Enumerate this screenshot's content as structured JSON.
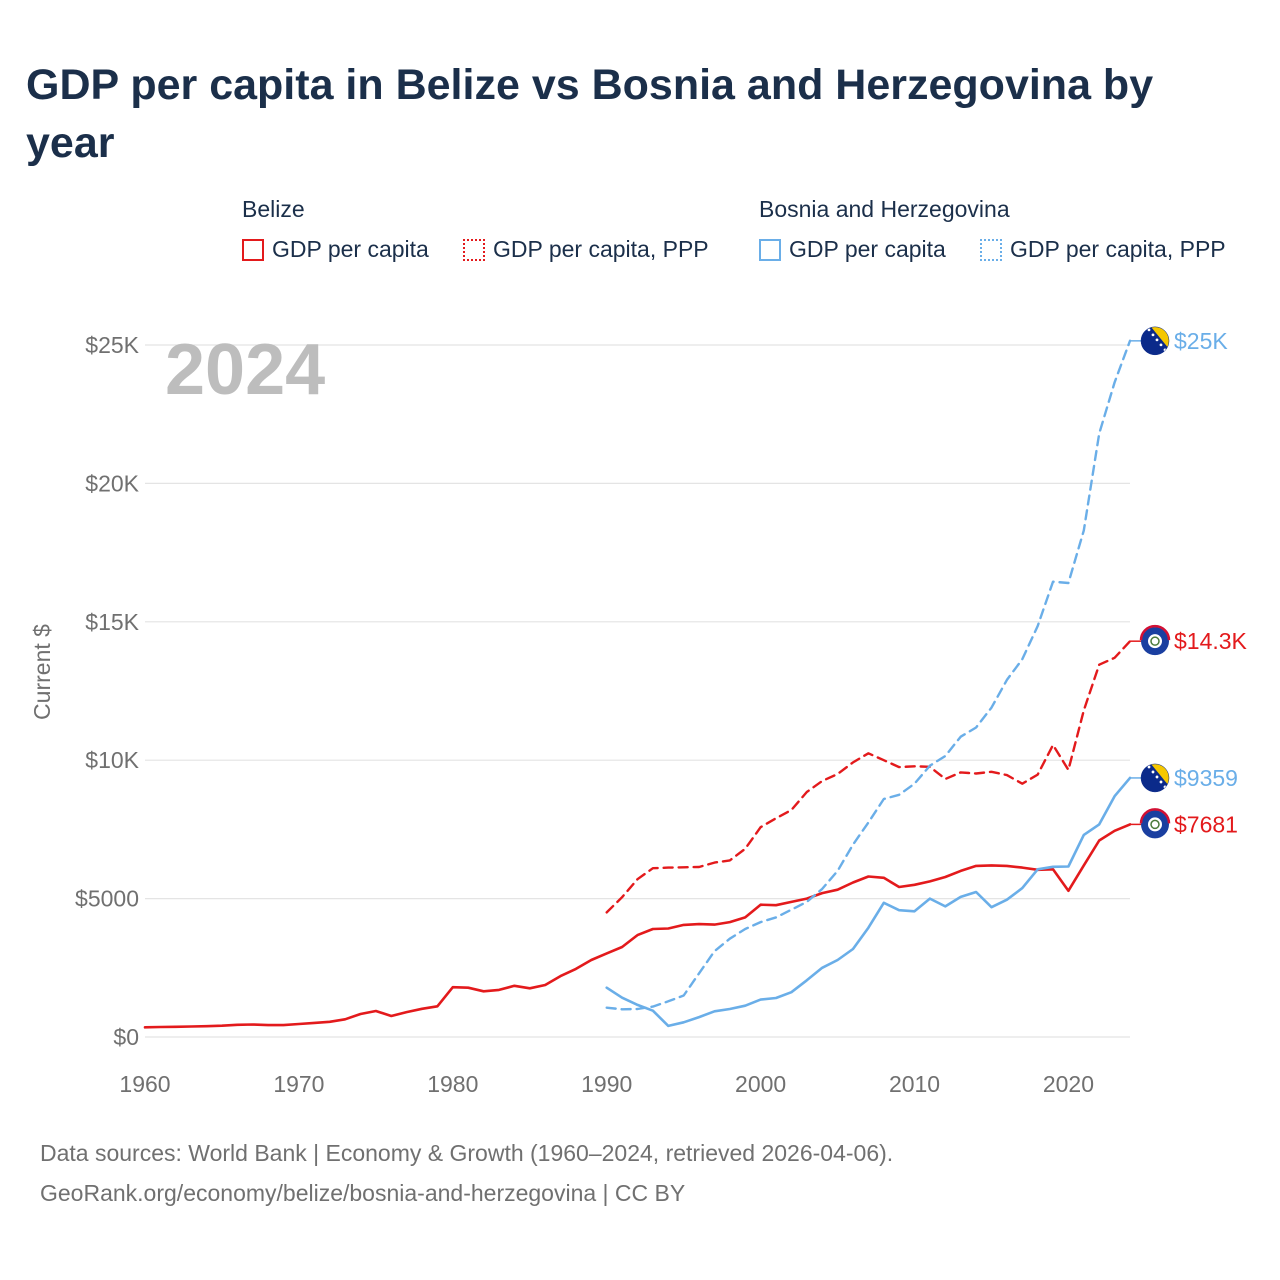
{
  "title": "GDP per capita in Belize vs Bosnia and Herzegovina by year",
  "legend": {
    "groups": [
      {
        "name": "Belize",
        "color": "#e31a1c",
        "items": [
          {
            "label": "GDP per capita",
            "style": "solid"
          },
          {
            "label": "GDP per capita, PPP",
            "style": "dotted"
          }
        ]
      },
      {
        "name": "Bosnia and Herzegovina",
        "color": "#6aaee8",
        "items": [
          {
            "label": "GDP per capita",
            "style": "solid"
          },
          {
            "label": "GDP per capita, PPP",
            "style": "dotted"
          }
        ]
      }
    ]
  },
  "chart_data": {
    "type": "line",
    "ylabel": "Current $",
    "xlim": [
      1960,
      2024
    ],
    "ylim": [
      0,
      25000
    ],
    "x_ticks": [
      1960,
      1970,
      1980,
      1990,
      2000,
      2010,
      2020
    ],
    "y_ticks": [
      {
        "value": 0,
        "label": "$0"
      },
      {
        "value": 5000,
        "label": "$5000"
      },
      {
        "value": 10000,
        "label": "$10K"
      },
      {
        "value": 15000,
        "label": "$15K"
      },
      {
        "value": 20000,
        "label": "$20K"
      },
      {
        "value": 25000,
        "label": "$25K"
      }
    ],
    "year_watermark": "2024",
    "series": [
      {
        "name": "Belize GDP per capita",
        "country": "Belize",
        "color": "#e31a1c",
        "dash": "solid",
        "end_label": "$7681",
        "flag": "belize",
        "points": [
          [
            1960,
            350
          ],
          [
            1961,
            360
          ],
          [
            1962,
            370
          ],
          [
            1963,
            380
          ],
          [
            1964,
            390
          ],
          [
            1965,
            410
          ],
          [
            1966,
            440
          ],
          [
            1967,
            450
          ],
          [
            1968,
            430
          ],
          [
            1969,
            430
          ],
          [
            1970,
            470
          ],
          [
            1971,
            510
          ],
          [
            1972,
            550
          ],
          [
            1973,
            640
          ],
          [
            1974,
            830
          ],
          [
            1975,
            940
          ],
          [
            1976,
            760
          ],
          [
            1977,
            900
          ],
          [
            1978,
            1020
          ],
          [
            1979,
            1110
          ],
          [
            1980,
            1800
          ],
          [
            1981,
            1780
          ],
          [
            1982,
            1650
          ],
          [
            1983,
            1700
          ],
          [
            1984,
            1850
          ],
          [
            1985,
            1760
          ],
          [
            1986,
            1880
          ],
          [
            1987,
            2200
          ],
          [
            1988,
            2460
          ],
          [
            1989,
            2780
          ],
          [
            1990,
            3020
          ],
          [
            1991,
            3250
          ],
          [
            1992,
            3680
          ],
          [
            1993,
            3900
          ],
          [
            1994,
            3920
          ],
          [
            1995,
            4050
          ],
          [
            1996,
            4080
          ],
          [
            1997,
            4060
          ],
          [
            1998,
            4150
          ],
          [
            1999,
            4320
          ],
          [
            2000,
            4780
          ],
          [
            2001,
            4760
          ],
          [
            2002,
            4880
          ],
          [
            2003,
            5000
          ],
          [
            2004,
            5200
          ],
          [
            2005,
            5320
          ],
          [
            2006,
            5580
          ],
          [
            2007,
            5800
          ],
          [
            2008,
            5750
          ],
          [
            2009,
            5420
          ],
          [
            2010,
            5500
          ],
          [
            2011,
            5620
          ],
          [
            2012,
            5780
          ],
          [
            2013,
            6000
          ],
          [
            2014,
            6180
          ],
          [
            2015,
            6200
          ],
          [
            2016,
            6180
          ],
          [
            2017,
            6120
          ],
          [
            2018,
            6040
          ],
          [
            2019,
            6060
          ],
          [
            2020,
            5280
          ],
          [
            2021,
            6200
          ],
          [
            2022,
            7100
          ],
          [
            2023,
            7450
          ],
          [
            2024,
            7681
          ]
        ]
      },
      {
        "name": "Belize GDP per capita, PPP",
        "country": "Belize",
        "color": "#e31a1c",
        "dash": "dashed",
        "end_label": "$14.3K",
        "flag": "belize",
        "points": [
          [
            1990,
            4500
          ],
          [
            1991,
            5050
          ],
          [
            1992,
            5700
          ],
          [
            1993,
            6100
          ],
          [
            1994,
            6120
          ],
          [
            1995,
            6130
          ],
          [
            1996,
            6140
          ],
          [
            1997,
            6300
          ],
          [
            1998,
            6380
          ],
          [
            1999,
            6800
          ],
          [
            2000,
            7580
          ],
          [
            2001,
            7900
          ],
          [
            2002,
            8200
          ],
          [
            2003,
            8850
          ],
          [
            2004,
            9250
          ],
          [
            2005,
            9500
          ],
          [
            2006,
            9920
          ],
          [
            2007,
            10250
          ],
          [
            2008,
            10000
          ],
          [
            2009,
            9750
          ],
          [
            2010,
            9780
          ],
          [
            2011,
            9760
          ],
          [
            2012,
            9320
          ],
          [
            2013,
            9560
          ],
          [
            2014,
            9520
          ],
          [
            2015,
            9580
          ],
          [
            2016,
            9460
          ],
          [
            2017,
            9150
          ],
          [
            2018,
            9480
          ],
          [
            2019,
            10550
          ],
          [
            2020,
            9650
          ],
          [
            2021,
            11800
          ],
          [
            2022,
            13450
          ],
          [
            2023,
            13700
          ],
          [
            2024,
            14300
          ]
        ]
      },
      {
        "name": "Bosnia and Herzegovina GDP per capita",
        "country": "Bosnia and Herzegovina",
        "color": "#6aaee8",
        "dash": "solid",
        "end_label": "$9359",
        "flag": "bosnia",
        "points": [
          [
            1990,
            1780
          ],
          [
            1991,
            1420
          ],
          [
            1992,
            1160
          ],
          [
            1993,
            950
          ],
          [
            1994,
            400
          ],
          [
            1995,
            530
          ],
          [
            1996,
            720
          ],
          [
            1997,
            930
          ],
          [
            1998,
            1010
          ],
          [
            1999,
            1130
          ],
          [
            2000,
            1350
          ],
          [
            2001,
            1410
          ],
          [
            2002,
            1620
          ],
          [
            2003,
            2050
          ],
          [
            2004,
            2500
          ],
          [
            2005,
            2780
          ],
          [
            2006,
            3180
          ],
          [
            2007,
            3950
          ],
          [
            2008,
            4850
          ],
          [
            2009,
            4580
          ],
          [
            2010,
            4540
          ],
          [
            2011,
            5000
          ],
          [
            2012,
            4720
          ],
          [
            2013,
            5060
          ],
          [
            2014,
            5240
          ],
          [
            2015,
            4690
          ],
          [
            2016,
            4960
          ],
          [
            2017,
            5380
          ],
          [
            2018,
            6060
          ],
          [
            2019,
            6150
          ],
          [
            2020,
            6160
          ],
          [
            2021,
            7300
          ],
          [
            2022,
            7680
          ],
          [
            2023,
            8700
          ],
          [
            2024,
            9359
          ]
        ]
      },
      {
        "name": "Bosnia and Herzegovina GDP per capita, PPP",
        "country": "Bosnia and Herzegovina",
        "color": "#6aaee8",
        "dash": "dashed",
        "end_label": "$25K",
        "flag": "bosnia",
        "points": [
          [
            1990,
            1060
          ],
          [
            1991,
            1000
          ],
          [
            1992,
            1010
          ],
          [
            1993,
            1100
          ],
          [
            1994,
            1290
          ],
          [
            1995,
            1500
          ],
          [
            1996,
            2300
          ],
          [
            1997,
            3100
          ],
          [
            1998,
            3550
          ],
          [
            1999,
            3900
          ],
          [
            2000,
            4150
          ],
          [
            2001,
            4320
          ],
          [
            2002,
            4600
          ],
          [
            2003,
            4880
          ],
          [
            2004,
            5350
          ],
          [
            2005,
            6000
          ],
          [
            2006,
            6950
          ],
          [
            2007,
            7750
          ],
          [
            2008,
            8600
          ],
          [
            2009,
            8750
          ],
          [
            2010,
            9150
          ],
          [
            2011,
            9800
          ],
          [
            2012,
            10150
          ],
          [
            2013,
            10850
          ],
          [
            2014,
            11180
          ],
          [
            2015,
            11900
          ],
          [
            2016,
            12900
          ],
          [
            2017,
            13650
          ],
          [
            2018,
            14850
          ],
          [
            2019,
            16450
          ],
          [
            2020,
            16400
          ],
          [
            2021,
            18300
          ],
          [
            2022,
            21800
          ],
          [
            2023,
            23650
          ],
          [
            2024,
            25150
          ]
        ]
      }
    ]
  },
  "footer": {
    "line1": "Data sources: World Bank | Economy & Growth (1960–2024, retrieved 2026-04-06).",
    "line2": "GeoRank.org/economy/belize/bosnia-and-herzegovina | CC BY"
  }
}
